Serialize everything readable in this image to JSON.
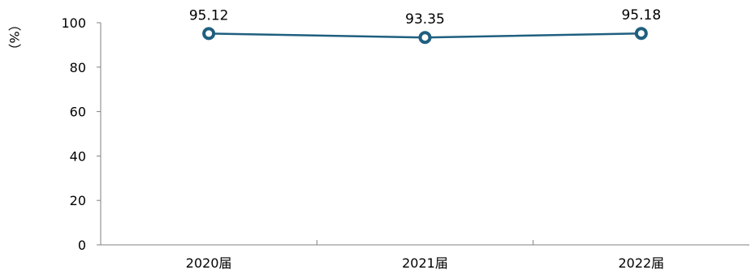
{
  "chart_data": {
    "type": "line",
    "categories": [
      "2020届",
      "2021届",
      "2022届"
    ],
    "series": [
      {
        "values": [
          95.12,
          93.35,
          95.18
        ]
      }
    ],
    "data_labels": [
      "95.12",
      "93.35",
      "95.18"
    ],
    "ylabel": "（%）",
    "ylim": [
      0,
      100
    ],
    "yticks": [
      "0",
      "20",
      "40",
      "60",
      "80",
      "100"
    ],
    "grid": false,
    "legend": "none",
    "line_color": "#1f5f7f"
  }
}
